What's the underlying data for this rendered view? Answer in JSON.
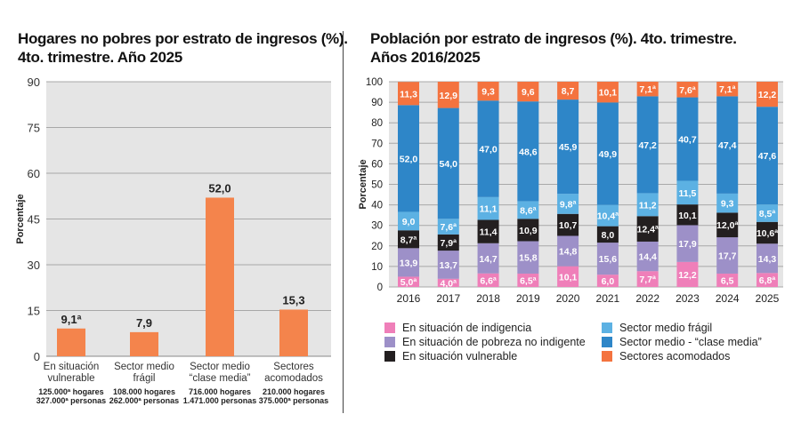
{
  "chart_data": [
    {
      "type": "bar",
      "title": "Hogares no pobres por estrato de ingresos (%). 4to. trimestre. Año 2025",
      "title_lines": [
        "Hogares no pobres por estrato de ingresos (%).",
        "4to. trimestre. Año 2025"
      ],
      "ylabel": "Porcentaje",
      "ylim": [
        0,
        90
      ],
      "yticks": [
        "0",
        "15",
        "30",
        "45",
        "60",
        "75",
        "90"
      ],
      "grid": true,
      "color": "#f4844c",
      "categories": [
        [
          "En situación",
          "vulnerable"
        ],
        [
          "Sector medio",
          "frágil"
        ],
        [
          "Sector medio",
          "“clase media”"
        ],
        [
          "Sectores",
          "acomodados"
        ]
      ],
      "values": [
        9.1,
        7.9,
        52.0,
        15.3
      ],
      "labels": [
        "9,1ª",
        "7,9",
        "52,0",
        "15,3"
      ],
      "sublabels": [
        [
          "125.000ª hogares",
          "327.000ª personas"
        ],
        [
          "108.000 hogares",
          "262.000ª personas"
        ],
        [
          "716.000 hogares",
          "1.471.000 personas"
        ],
        [
          "210.000 hogares",
          "375.000ª personas"
        ]
      ]
    },
    {
      "type": "bar",
      "stacked": true,
      "title_lines": [
        "Población por estrato de ingresos (%). 4to. trimestre.",
        "Años 2016/2025"
      ],
      "ylabel": "Porcentaje",
      "ylim": [
        0,
        100
      ],
      "yticks": [
        "0",
        "10",
        "20",
        "30",
        "40",
        "50",
        "60",
        "70",
        "80",
        "90",
        "100"
      ],
      "grid": true,
      "legend": "bottom",
      "categories": [
        "2016",
        "2017",
        "2018",
        "2019",
        "2020",
        "2021",
        "2022",
        "2023",
        "2024",
        "2025"
      ],
      "series": [
        {
          "name": "En situación de indigencia",
          "color": "#ef7fb9",
          "values": [
            5.0,
            4.0,
            6.6,
            6.5,
            10.1,
            6.0,
            7.7,
            12.2,
            6.5,
            6.8
          ],
          "labels": [
            "5,0ª",
            "4,0ª",
            "6,6ª",
            "6,5ª",
            "10,1",
            "6,0",
            "7,7ª",
            "12,2",
            "6,5",
            "6,8ª"
          ]
        },
        {
          "name": "En situación de pobreza no indigente",
          "color": "#9d90c8",
          "values": [
            13.9,
            13.7,
            14.7,
            15.8,
            14.8,
            15.6,
            14.4,
            17.9,
            17.7,
            14.3
          ],
          "labels": [
            "13,9",
            "13,7",
            "14,7",
            "15,8",
            "14,8",
            "15,6",
            "14,4",
            "17,9",
            "17,7",
            "14,3"
          ]
        },
        {
          "name": "En situación vulnerable",
          "color": "#231f20",
          "values": [
            8.7,
            7.9,
            11.4,
            10.9,
            10.7,
            8.0,
            12.4,
            10.1,
            12.0,
            10.6
          ],
          "labels": [
            "8,7ª",
            "7,9ª",
            "11,4",
            "10,9",
            "10,7",
            "8,0",
            "12,4ª",
            "10,1",
            "12,0ª",
            "10,6ª"
          ]
        },
        {
          "name": "Sector medio frágil",
          "color": "#5cb1e3",
          "values": [
            9.0,
            7.6,
            11.1,
            8.6,
            9.8,
            10.4,
            11.2,
            11.5,
            9.3,
            8.5
          ],
          "labels": [
            "9,0",
            "7,6ª",
            "11,1",
            "8,6ª",
            "9,8ª",
            "10,4ª",
            "11,2",
            "11,5",
            "9,3",
            "8,5ª"
          ]
        },
        {
          "name": "Sector medio - “clase media”",
          "color": "#2e86c8",
          "values": [
            52.0,
            54.0,
            47.0,
            48.6,
            45.9,
            49.9,
            47.2,
            40.7,
            47.4,
            47.6
          ],
          "labels": [
            "52,0",
            "54,0",
            "47,0",
            "48,6",
            "45,9",
            "49,9",
            "47,2",
            "40,7",
            "47,4",
            "47,6"
          ]
        },
        {
          "name": "Sectores acomodados",
          "color": "#f4733f",
          "values": [
            11.3,
            12.9,
            9.3,
            9.6,
            8.7,
            10.1,
            7.1,
            7.6,
            7.1,
            12.2
          ],
          "labels": [
            "11,3",
            "12,9",
            "9,3",
            "9,6",
            "8,7",
            "10,1",
            "7,1ª",
            "7,6ª",
            "7,1ª",
            "12,2"
          ]
        }
      ],
      "legend_order": [
        0,
        3,
        1,
        4,
        2,
        5
      ]
    }
  ]
}
